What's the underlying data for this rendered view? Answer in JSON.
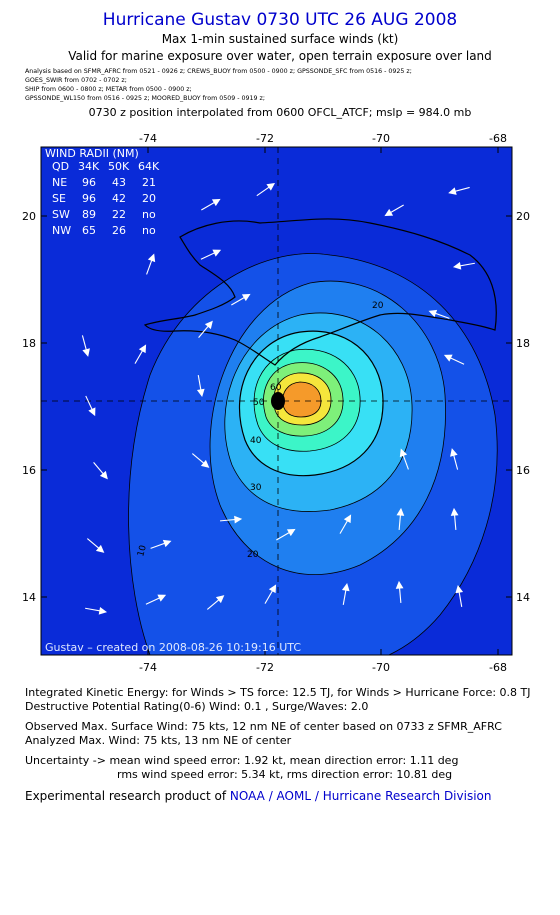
{
  "title": "Hurricane Gustav 0730 UTC 26 AUG 2008",
  "subtitle_1": "Max 1-min sustained surface winds (kt)",
  "subtitle_2": "Valid for marine exposure over water, open terrain exposure over land",
  "sources": [
    "Analysis based on  SFMR_AFRC  from 0521 - 0926 z;   CREWS_BUOY  from 0500 - 0900 z;   GPSSONDE_SFC  from 0516 - 0925 z;",
    "GOES_SWIR  from 0702 - 0702 z;",
    "SHIP  from 0600 - 0800 z;   METAR  from 0500 - 0900 z;",
    "GPSSONDE_WL150  from 0516 - 0925 z;   MOORED_BUOY  from 0509 - 0919 z;"
  ],
  "position_line": "0730 z position interpolated from 0600 OFCL_ATCF; mslp = 984.0 mb",
  "map": {
    "x_ticks": [
      "-74",
      "-72",
      "-70",
      "-68"
    ],
    "y_ticks": [
      "20",
      "18",
      "16",
      "14"
    ],
    "contour_labels": [
      "10",
      "20",
      "30",
      "40",
      "50",
      "60",
      "20"
    ],
    "credit": "Gustav – created on 2008-08-26 10:19:16 UTC",
    "colors": {
      "background": "#0a2bd8",
      "c10": "#1451e8",
      "c20": "#1f7ff0",
      "c30": "#2cb2f5",
      "c40": "#38e0f5",
      "c50": "#3cf5c8",
      "c60": "#7ef07a",
      "c64": "#f5e63c",
      "c70": "#f59a2a",
      "core": "#000000"
    }
  },
  "wind_radii": {
    "title": "WIND RADII (NM)",
    "header": [
      "QD",
      "34K",
      "50K",
      "64K"
    ],
    "rows": [
      [
        "NE",
        "96",
        "43",
        "21"
      ],
      [
        "SE",
        "96",
        "42",
        "20"
      ],
      [
        "SW",
        "89",
        "22",
        "no"
      ],
      [
        "NW",
        "65",
        "26",
        "no"
      ]
    ]
  },
  "info": {
    "ike": "Integrated Kinetic Energy:  for Winds > TS force: 12.5 TJ,  for Winds > Hurricane Force: 0.8 TJ",
    "dpr": "Destructive Potential Rating(0-6)   Wind: 0.1 , Surge/Waves: 2.0",
    "observed": "Observed Max. Surface Wind: 75 kts, 12 nm NE of center based on 0733 z SFMR_AFRC",
    "analyzed": "Analyzed Max. Wind: 75 kts, 13 nm NE of center",
    "uncertainty_1": "Uncertainty -> mean wind speed error: 1.92 kt,   mean direction error: 1.11 deg",
    "uncertainty_2": "rms wind speed error: 5.34 kt,   rms direction error: 10.81 deg",
    "product_prefix": "Experimental research product of ",
    "product_link": "NOAA / AOML / Hurricane Research Division"
  }
}
